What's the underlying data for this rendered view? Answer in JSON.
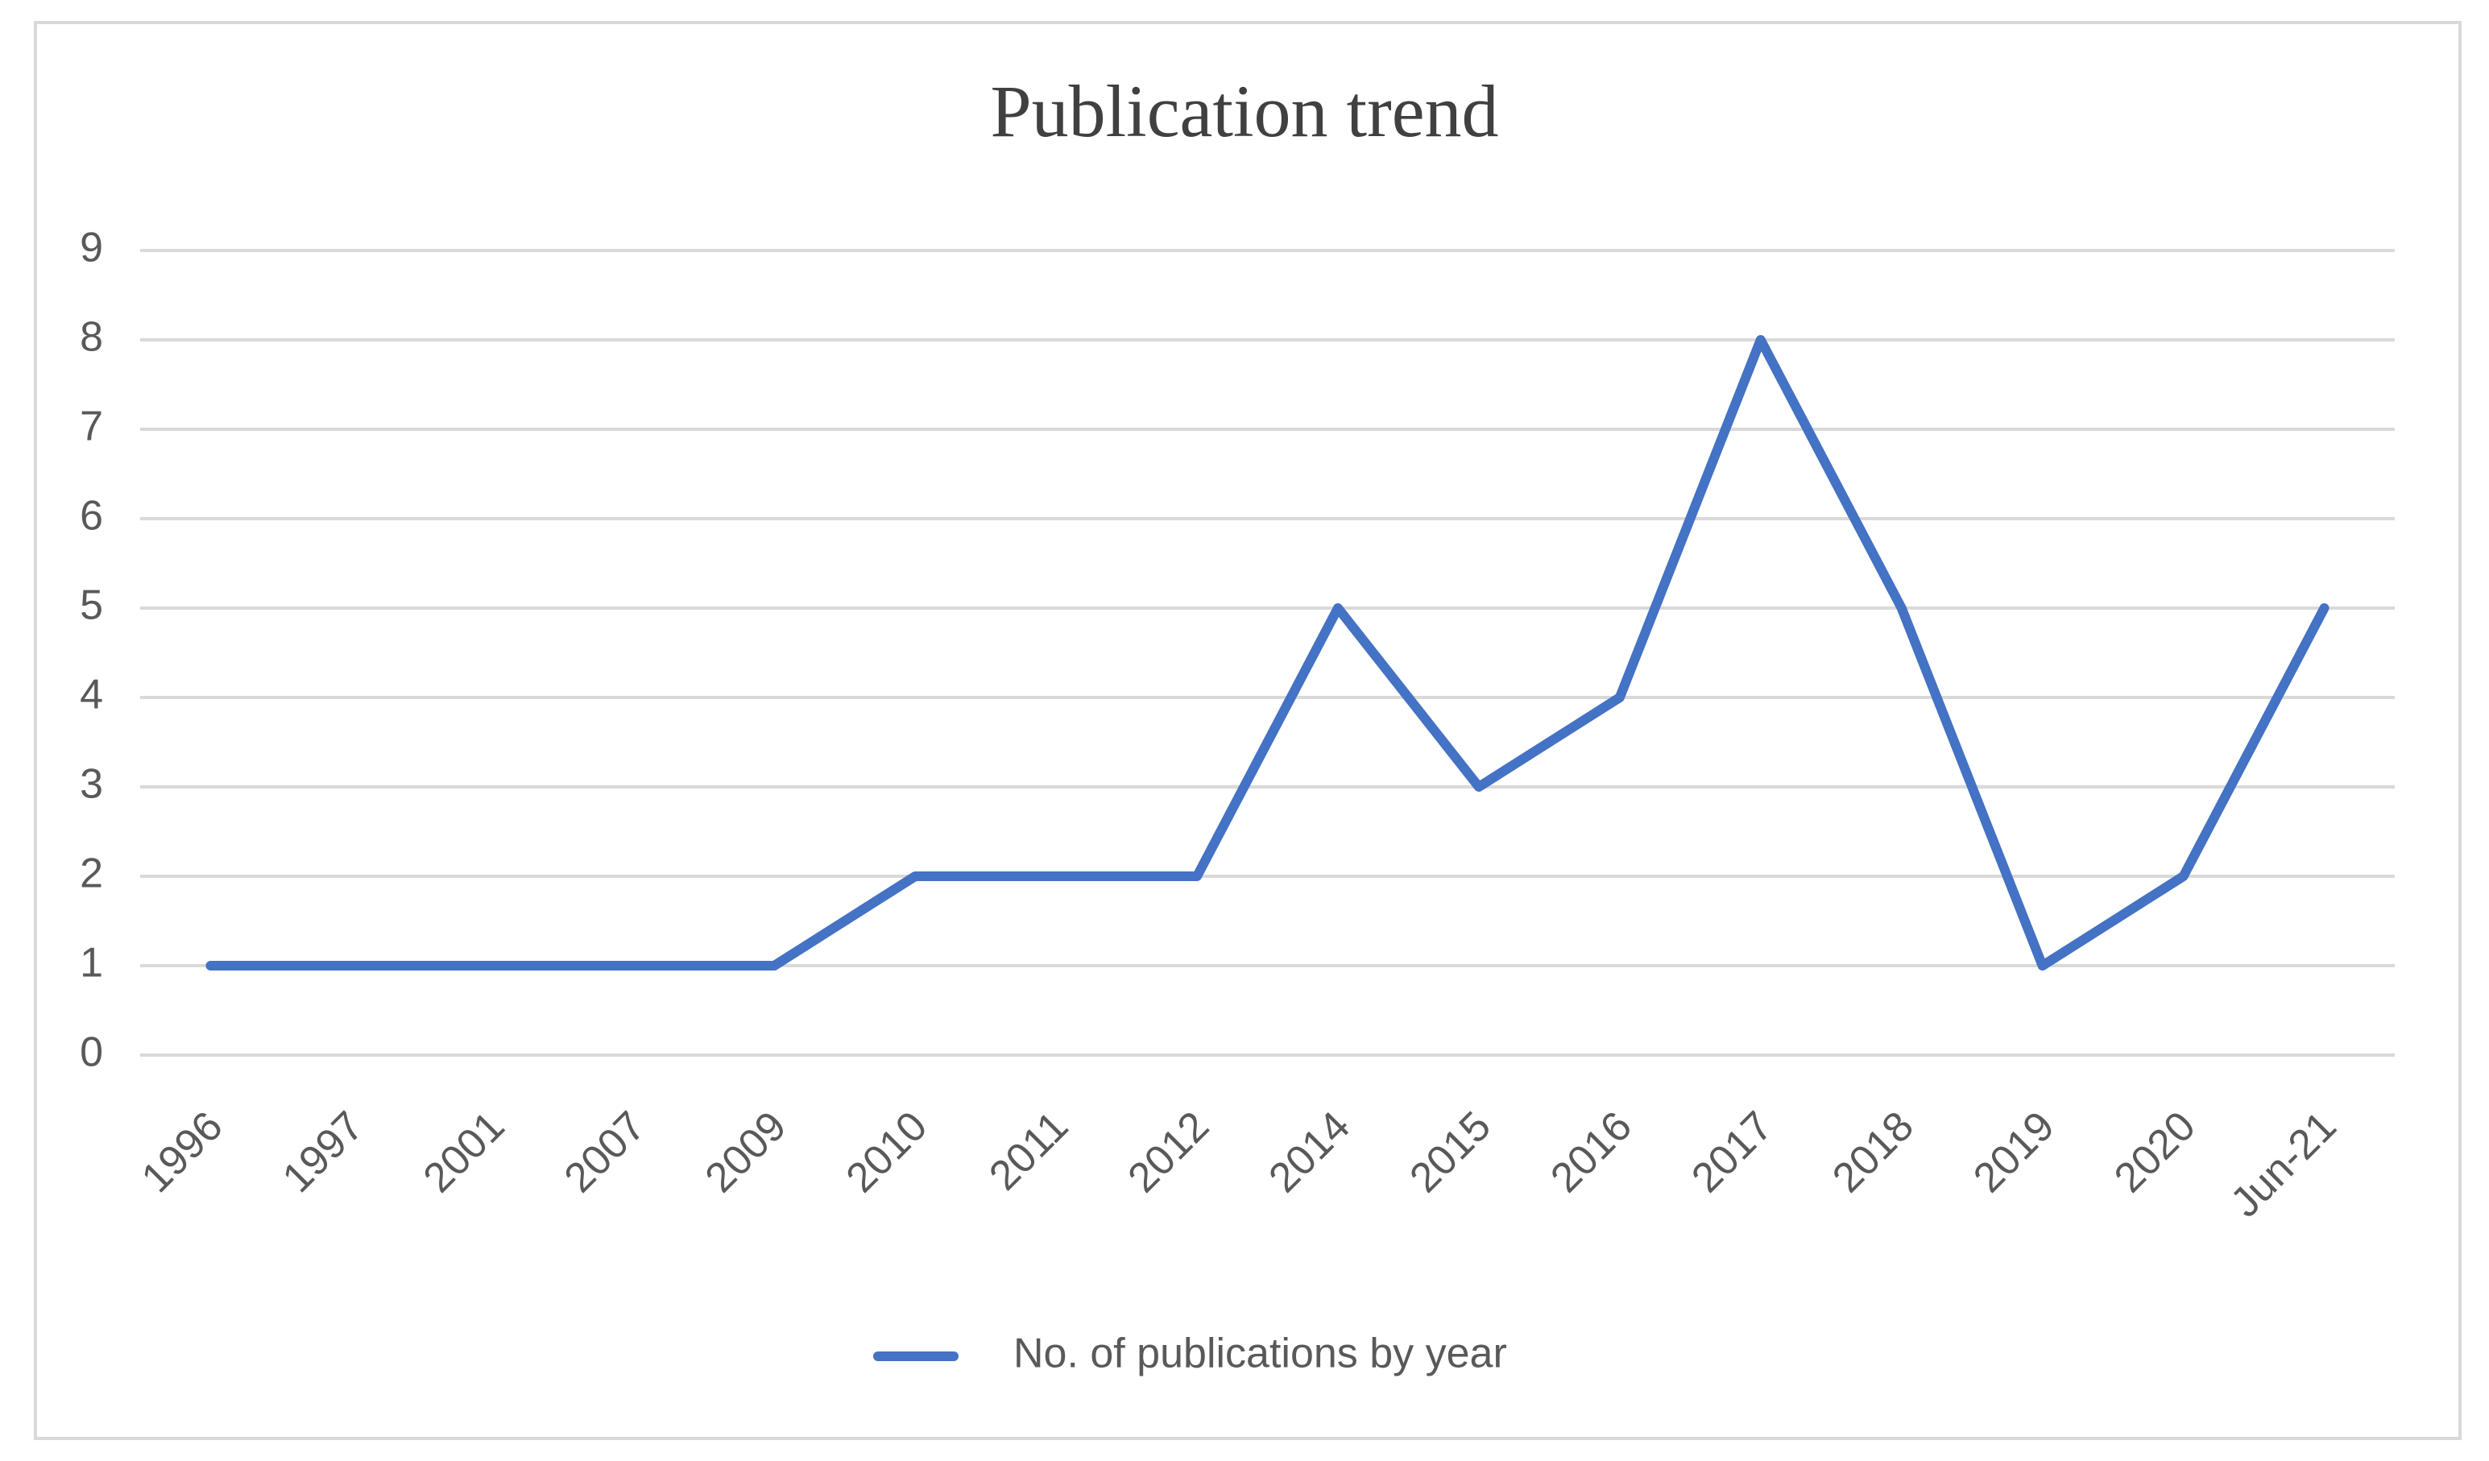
{
  "chart_data": {
    "type": "line",
    "title": "Publication trend",
    "categories": [
      "1996",
      "1997",
      "2001",
      "2007",
      "2009",
      "2010",
      "2011",
      "2012",
      "2014",
      "2015",
      "2016",
      "2017",
      "2018",
      "2019",
      "2020",
      "Jun-21"
    ],
    "series": [
      {
        "name": "No. of publications by year",
        "color": "#4472c4",
        "values": [
          1,
          1,
          1,
          1,
          1,
          2,
          2,
          2,
          5,
          3,
          4,
          8,
          5,
          1,
          2,
          5
        ]
      }
    ],
    "ylim": [
      0,
      9
    ],
    "yticks": [
      0,
      1,
      2,
      3,
      4,
      5,
      6,
      7,
      8,
      9
    ],
    "grid": true,
    "legend": "bottom"
  }
}
